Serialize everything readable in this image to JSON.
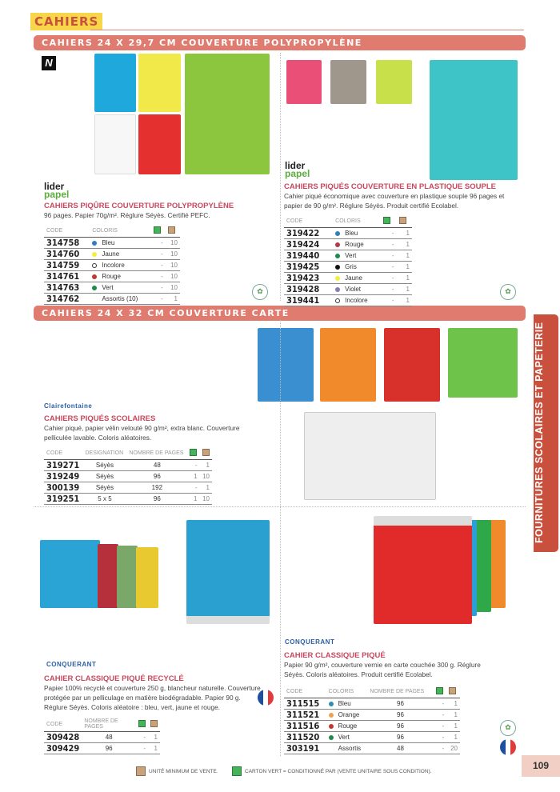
{
  "category": "CAHIERS",
  "side_tab": "FOURNITURES SCOLAIRES ET PAPETERIE",
  "page_number": "109",
  "sections": [
    {
      "title": "CAHIERS 24 X 29,7 CM COUVERTURE POLYPROPYLÈNE"
    },
    {
      "title": "CAHIERS 24 X 32 CM COUVERTURE CARTE"
    }
  ],
  "new_badge": "N",
  "logos": {
    "lider_1": "lider",
    "lider_2": "papel",
    "clairefontaine": "Clairefontaine",
    "conquerant": "CONQUERANT"
  },
  "eco_label": "Ecolabel",
  "colors": {
    "accent": "#e07b6f",
    "title": "#c9485e",
    "side": "#c9503d",
    "category_bg": "#f7d64a"
  },
  "products": [
    {
      "title": "CAHIERS PIQÛRE COUVERTURE POLYPROPYLÈNE",
      "desc": "96 pages. Papier 70g/m². Réglure Séyès. Certifié PEFC.",
      "headers": [
        "CODE",
        "COLORIS",
        "",
        ""
      ],
      "rows": [
        [
          "314758",
          "Bleu",
          "-",
          "10",
          "#2d7fc0"
        ],
        [
          "314760",
          "Jaune",
          "-",
          "10",
          "#f4ef3a"
        ],
        [
          "314759",
          "Incolore",
          "-",
          "10",
          ""
        ],
        [
          "314761",
          "Rouge",
          "-",
          "10",
          "#c0392b"
        ],
        [
          "314763",
          "Vert",
          "-",
          "10",
          "#1f8a4c"
        ],
        [
          "314762",
          "Assortis (10)",
          "-",
          "1",
          "none"
        ]
      ]
    },
    {
      "title": "CAHIERS PIQUÉS COUVERTURE EN PLASTIQUE SOUPLE",
      "desc": "Cahier piqué économique avec couverture en plastique souple 96 pages et papier de 90 g/m². Réglure Séyès. Produit certifié Ecolabel.",
      "headers": [
        "CODE",
        "COLORIS",
        "",
        ""
      ],
      "rows": [
        [
          "319422",
          "Bleu",
          "-",
          "1",
          "#2d7fc0"
        ],
        [
          "319424",
          "Rouge",
          "-",
          "1",
          "#b03a4a"
        ],
        [
          "319440",
          "Vert",
          "-",
          "1",
          "#1f8a4c"
        ],
        [
          "319425",
          "Gris",
          "-",
          "1",
          "#111111"
        ],
        [
          "319423",
          "Jaune",
          "-",
          "1",
          "#f4ef3a"
        ],
        [
          "319428",
          "Violet",
          "-",
          "1",
          "#8a7ab8"
        ],
        [
          "319441",
          "Incolore",
          "-",
          "1",
          ""
        ]
      ]
    },
    {
      "title": "CAHIERS PIQUÉS SCOLAIRES",
      "desc": "Cahier piqué, papier vélin velouté 90 g/m², extra blanc. Couverture pelliculée lavable. Coloris aléatoires.",
      "headers": [
        "CODE",
        "DESIGNATION",
        "NOMBRE DE PAGES",
        "",
        ""
      ],
      "rows": [
        [
          "319271",
          "Séyès",
          "48",
          "-",
          "1"
        ],
        [
          "319249",
          "Séyès",
          "96",
          "1",
          "10"
        ],
        [
          "300139",
          "Séyès",
          "192",
          "-",
          "1"
        ],
        [
          "319251",
          "5 x 5",
          "96",
          "1",
          "10"
        ]
      ]
    },
    {
      "title": "CAHIER CLASSIQUE PIQUÉ RECYCLÉ",
      "desc": "Papier 100% recyclé et couverture 250 g, blancheur naturelle. Couverture protégée par un pelliculage en matière biodégradable. Papier 90 g. Réglure Séyès. Coloris aléatoire : bleu, vert, jaune et rouge.",
      "headers": [
        "CODE",
        "NOMBRE DE PAGES",
        "",
        ""
      ],
      "rows": [
        [
          "309428",
          "48",
          "-",
          "1"
        ],
        [
          "309429",
          "96",
          "-",
          "1"
        ]
      ]
    },
    {
      "title": "CAHIER CLASSIQUE PIQUÉ",
      "desc": "Papier 90 g/m², couverture vernie en carte couchée 300 g. Réglure Séyès. Coloris aléatoires. Produit certifié Ecolabel.",
      "headers": [
        "CODE",
        "COLORIS",
        "NOMBRE DE PAGES",
        "",
        ""
      ],
      "rows": [
        [
          "311515",
          "Bleu",
          "96",
          "-",
          "1",
          "#2d8fb0"
        ],
        [
          "311521",
          "Orange",
          "96",
          "-",
          "1",
          "#f0a050"
        ],
        [
          "311516",
          "Rouge",
          "96",
          "-",
          "1",
          "#c0392b"
        ],
        [
          "311520",
          "Vert",
          "96",
          "-",
          "1",
          "#1f8a4c"
        ],
        [
          "303191",
          "Assortis",
          "48",
          "-",
          "20",
          "none"
        ]
      ]
    }
  ],
  "footer": {
    "min_unit": "UNITÉ MINIMUM DE VENTE.",
    "green_carton": "CARTON VERT = CONDITIONNÉ PAR (VENTE UNITAIRE SOUS CONDITION)."
  }
}
